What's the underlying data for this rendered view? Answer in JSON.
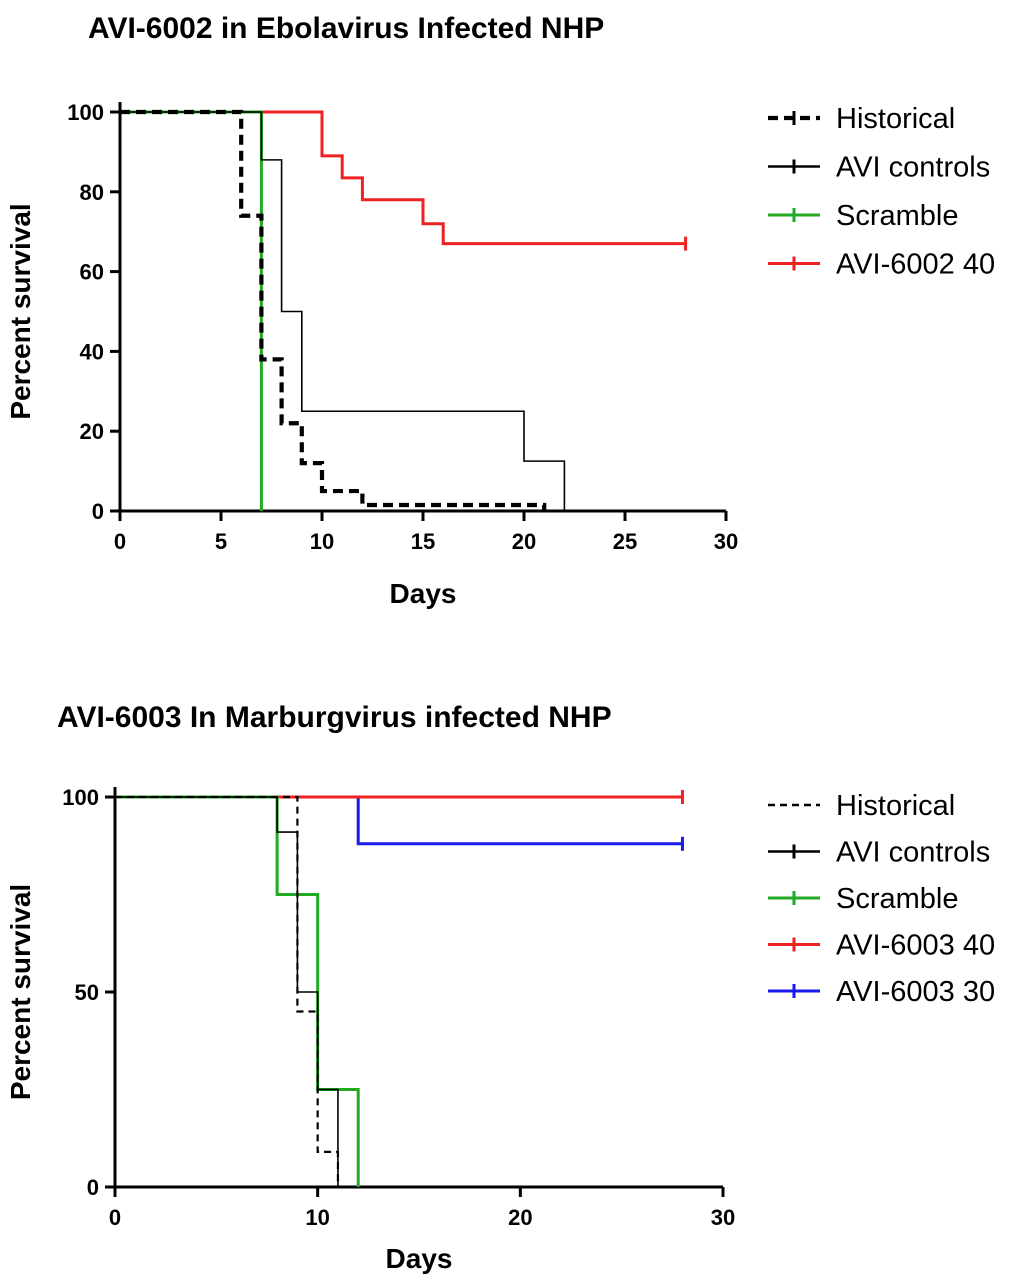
{
  "chart_data": [
    {
      "type": "line",
      "subtype": "kaplan-meier step",
      "title": "AVI-6002 in Ebolavirus Infected NHP",
      "xlabel": "Days",
      "ylabel": "Percent survival",
      "xlim": [
        0,
        30
      ],
      "ylim": [
        0,
        100
      ],
      "xticks": [
        0,
        5,
        10,
        15,
        20,
        25,
        30
      ],
      "yticks": [
        0,
        20,
        40,
        60,
        80,
        100
      ],
      "legend_position": "right",
      "series": [
        {
          "name": "Historical",
          "color": "#000000",
          "style": "dashed-thick",
          "x": [
            0,
            6,
            7,
            8,
            9,
            10,
            12,
            21
          ],
          "y": [
            100,
            74,
            38,
            22,
            12,
            5,
            1.5,
            0
          ],
          "censored": []
        },
        {
          "name": "AVI controls",
          "color": "#000000",
          "style": "solid-thin",
          "x": [
            0,
            7,
            8,
            9,
            20,
            22
          ],
          "y": [
            100,
            88,
            50,
            25,
            12.5,
            0
          ],
          "censored": []
        },
        {
          "name": "Scramble",
          "color": "#22aa22",
          "style": "solid",
          "x": [
            0,
            7
          ],
          "y": [
            100,
            0
          ],
          "censored": []
        },
        {
          "name": "AVI-6002 40",
          "color": "#ee2222",
          "style": "solid",
          "x": [
            0,
            10,
            11,
            12,
            15,
            16,
            28
          ],
          "y": [
            100,
            89,
            83.5,
            78,
            72,
            67,
            67
          ],
          "censored": [
            28
          ]
        }
      ]
    },
    {
      "type": "line",
      "subtype": "kaplan-meier step",
      "title": "AVI-6003 In Marburgvirus infected NHP",
      "xlabel": "Days",
      "ylabel": "Percent survival",
      "xlim": [
        0,
        30
      ],
      "ylim": [
        0,
        100
      ],
      "xticks": [
        0,
        10,
        20,
        30
      ],
      "yticks": [
        0,
        50,
        100
      ],
      "legend_position": "right",
      "series": [
        {
          "name": "Historical",
          "color": "#000000",
          "style": "dashed",
          "x": [
            0,
            9,
            10,
            11
          ],
          "y": [
            100,
            45,
            9,
            0
          ],
          "censored": []
        },
        {
          "name": "AVI controls",
          "color": "#000000",
          "style": "solid-thin",
          "x": [
            0,
            8,
            9,
            10,
            11
          ],
          "y": [
            100,
            91,
            50,
            25,
            0
          ],
          "censored": []
        },
        {
          "name": "Scramble",
          "color": "#22aa22",
          "style": "solid",
          "x": [
            0,
            8,
            10,
            12
          ],
          "y": [
            100,
            75,
            25,
            0
          ],
          "censored": []
        },
        {
          "name": "AVI-6003 40",
          "color": "#ee2222",
          "style": "solid",
          "x": [
            0,
            28
          ],
          "y": [
            100,
            100
          ],
          "censored": [
            28
          ]
        },
        {
          "name": "AVI-6003 30",
          "color": "#1a1aee",
          "style": "solid",
          "x": [
            0,
            12,
            28
          ],
          "y": [
            100,
            88,
            88
          ],
          "censored": [
            28
          ]
        }
      ]
    }
  ]
}
